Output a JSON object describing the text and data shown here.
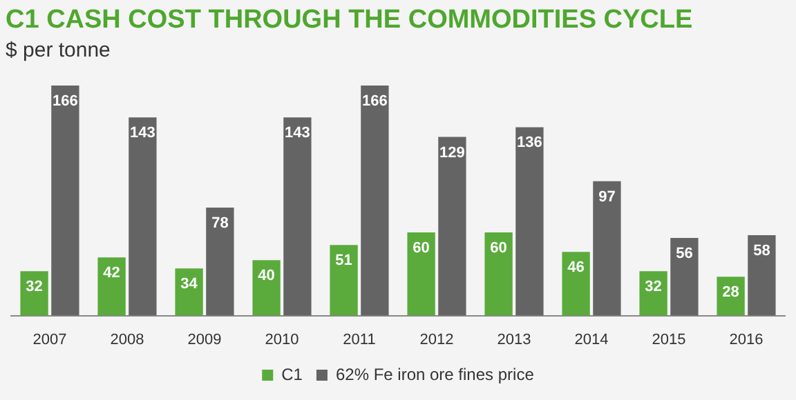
{
  "chart_data": {
    "type": "bar",
    "title": "C1 CASH COST THROUGH THE COMMODITIES CYCLE",
    "subtitle": "$ per tonne",
    "categories": [
      "2007",
      "2008",
      "2009",
      "2010",
      "2011",
      "2012",
      "2013",
      "2014",
      "2015",
      "2016"
    ],
    "series": [
      {
        "name": "C1",
        "color": "#5aab3c",
        "values": [
          32,
          42,
          34,
          40,
          51,
          60,
          60,
          46,
          32,
          28
        ]
      },
      {
        "name": "62% Fe iron ore fines price",
        "color": "#646464",
        "values": [
          166,
          143,
          78,
          143,
          166,
          129,
          136,
          97,
          56,
          58
        ]
      }
    ],
    "data_labels": true,
    "legend": "bottom",
    "grid": false
  }
}
